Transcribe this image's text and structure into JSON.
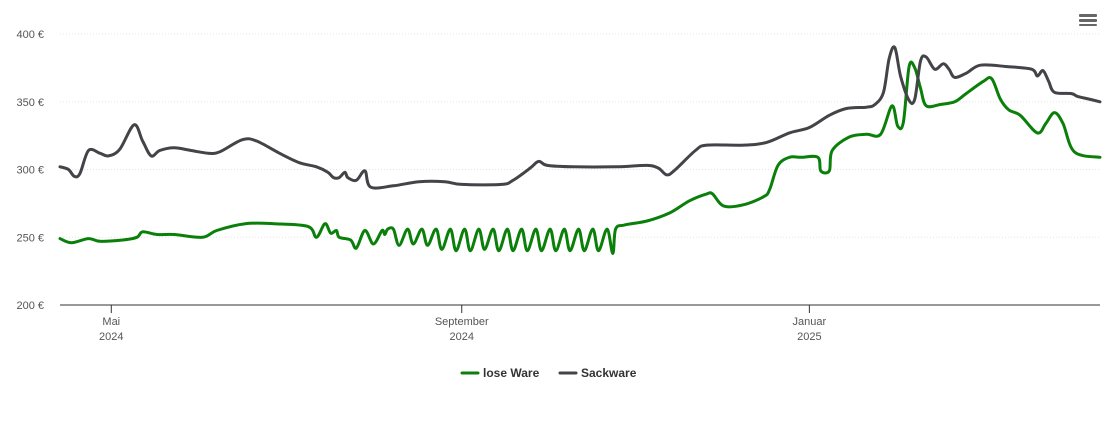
{
  "chart_menu": {
    "icon": "hamburger-menu-icon"
  },
  "chart_data": {
    "type": "line",
    "title": "",
    "xlabel": "",
    "ylabel": "",
    "ylim": [
      200,
      400
    ],
    "y_ticks": [
      200,
      250,
      300,
      350,
      400
    ],
    "y_unit": "€",
    "y_tick_labels": [
      "200 €",
      "250 €",
      "300 €",
      "350 €",
      "400 €"
    ],
    "x_range": [
      "2024-04-13",
      "2025-04-13"
    ],
    "x_ticks": [
      {
        "date": "2024-05-01",
        "month": "Mai",
        "year": "2024"
      },
      {
        "date": "2024-09-01",
        "month": "September",
        "year": "2024"
      },
      {
        "date": "2025-01-01",
        "month": "Januar",
        "year": "2025"
      }
    ],
    "grid": true,
    "legend_position": "bottom-center",
    "series": [
      {
        "name": "lose Ware",
        "color": "#0a7f0a",
        "points": [
          [
            "2024-04-13",
            249
          ],
          [
            "2024-04-17",
            246
          ],
          [
            "2024-04-23",
            249
          ],
          [
            "2024-04-27",
            247
          ],
          [
            "2024-05-05",
            248
          ],
          [
            "2024-05-10",
            250
          ],
          [
            "2024-05-12",
            254
          ],
          [
            "2024-05-17",
            252
          ],
          [
            "2024-05-23",
            252
          ],
          [
            "2024-06-02",
            250
          ],
          [
            "2024-06-07",
            255
          ],
          [
            "2024-06-17",
            260
          ],
          [
            "2024-06-27",
            260
          ],
          [
            "2024-07-09",
            258
          ],
          [
            "2024-07-12",
            250
          ],
          [
            "2024-07-15",
            260
          ],
          [
            "2024-07-17",
            253
          ],
          [
            "2024-07-19",
            255
          ],
          [
            "2024-07-20",
            250
          ],
          [
            "2024-07-24",
            248
          ],
          [
            "2024-07-26",
            242
          ],
          [
            "2024-07-29",
            255
          ],
          [
            "2024-08-01",
            245
          ],
          [
            "2024-08-04",
            255
          ],
          [
            "2024-08-05",
            252
          ],
          [
            "2024-08-06",
            256
          ],
          [
            "2024-08-08",
            256
          ],
          [
            "2024-08-10",
            244
          ],
          [
            "2024-08-13",
            256
          ],
          [
            "2024-08-15",
            245
          ],
          [
            "2024-08-18",
            256
          ],
          [
            "2024-08-20",
            244
          ],
          [
            "2024-08-23",
            256
          ],
          [
            "2024-08-25",
            241
          ],
          [
            "2024-08-28",
            256
          ],
          [
            "2024-08-30",
            240
          ],
          [
            "2024-09-02",
            256
          ],
          [
            "2024-09-04",
            240
          ],
          [
            "2024-09-07",
            256
          ],
          [
            "2024-09-09",
            241
          ],
          [
            "2024-09-12",
            256
          ],
          [
            "2024-09-14",
            240
          ],
          [
            "2024-09-17",
            256
          ],
          [
            "2024-09-19",
            240
          ],
          [
            "2024-09-22",
            256
          ],
          [
            "2024-09-24",
            240
          ],
          [
            "2024-09-27",
            256
          ],
          [
            "2024-09-29",
            240
          ],
          [
            "2024-10-02",
            256
          ],
          [
            "2024-10-04",
            240
          ],
          [
            "2024-10-07",
            256
          ],
          [
            "2024-10-09",
            240
          ],
          [
            "2024-10-12",
            256
          ],
          [
            "2024-10-14",
            240
          ],
          [
            "2024-10-17",
            256
          ],
          [
            "2024-10-19",
            240
          ],
          [
            "2024-10-22",
            256
          ],
          [
            "2024-10-24",
            238
          ],
          [
            "2024-10-25",
            256
          ],
          [
            "2024-10-28",
            259
          ],
          [
            "2024-11-05",
            262
          ],
          [
            "2024-11-13",
            268
          ],
          [
            "2024-11-20",
            277
          ],
          [
            "2024-11-26",
            282
          ],
          [
            "2024-11-28",
            282
          ],
          [
            "2024-12-02",
            273
          ],
          [
            "2024-12-09",
            274
          ],
          [
            "2024-12-16",
            280
          ],
          [
            "2024-12-18",
            285
          ],
          [
            "2024-12-21",
            303
          ],
          [
            "2024-12-25",
            309
          ],
          [
            "2024-12-29",
            309
          ],
          [
            "2025-01-04",
            309
          ],
          [
            "2025-01-05",
            299
          ],
          [
            "2025-01-08",
            299
          ],
          [
            "2025-01-09",
            314
          ],
          [
            "2025-01-15",
            324
          ],
          [
            "2025-01-21",
            326
          ],
          [
            "2025-01-26",
            326
          ],
          [
            "2025-01-30",
            347
          ],
          [
            "2025-02-01",
            332
          ],
          [
            "2025-02-03",
            335
          ],
          [
            "2025-02-05",
            376
          ],
          [
            "2025-02-07",
            375
          ],
          [
            "2025-02-09",
            360
          ],
          [
            "2025-02-11",
            347
          ],
          [
            "2025-02-16",
            348
          ],
          [
            "2025-02-21",
            350
          ],
          [
            "2025-02-25",
            356
          ],
          [
            "2025-03-03",
            365
          ],
          [
            "2025-03-06",
            367
          ],
          [
            "2025-03-09",
            352
          ],
          [
            "2025-03-12",
            344
          ],
          [
            "2025-03-16",
            340
          ],
          [
            "2025-03-22",
            327
          ],
          [
            "2025-03-25",
            334
          ],
          [
            "2025-03-28",
            342
          ],
          [
            "2025-03-31",
            334
          ],
          [
            "2025-04-04",
            313
          ],
          [
            "2025-04-13",
            309
          ]
        ]
      },
      {
        "name": "Sackware",
        "color": "#434348",
        "points": [
          [
            "2024-04-13",
            302
          ],
          [
            "2024-04-16",
            300
          ],
          [
            "2024-04-18",
            295
          ],
          [
            "2024-04-20",
            297
          ],
          [
            "2024-04-23",
            314
          ],
          [
            "2024-04-27",
            312
          ],
          [
            "2024-04-30",
            310
          ],
          [
            "2024-05-04",
            315
          ],
          [
            "2024-05-09",
            333
          ],
          [
            "2024-05-12",
            321
          ],
          [
            "2024-05-15",
            310
          ],
          [
            "2024-05-18",
            314
          ],
          [
            "2024-05-23",
            316
          ],
          [
            "2024-05-29",
            314
          ],
          [
            "2024-06-04",
            312
          ],
          [
            "2024-06-08",
            313
          ],
          [
            "2024-06-16",
            322
          ],
          [
            "2024-06-21",
            321
          ],
          [
            "2024-06-29",
            312
          ],
          [
            "2024-07-06",
            305
          ],
          [
            "2024-07-12",
            302
          ],
          [
            "2024-07-16",
            298
          ],
          [
            "2024-07-18",
            294
          ],
          [
            "2024-07-20",
            294
          ],
          [
            "2024-07-22",
            298
          ],
          [
            "2024-07-23",
            294
          ],
          [
            "2024-07-26",
            292
          ],
          [
            "2024-07-29",
            299
          ],
          [
            "2024-07-31",
            287
          ],
          [
            "2024-08-08",
            288
          ],
          [
            "2024-08-17",
            291
          ],
          [
            "2024-08-26",
            291
          ],
          [
            "2024-09-01",
            289
          ],
          [
            "2024-09-15",
            289
          ],
          [
            "2024-09-19",
            292
          ],
          [
            "2024-09-25",
            301
          ],
          [
            "2024-09-28",
            306
          ],
          [
            "2024-10-01",
            303
          ],
          [
            "2024-10-10",
            302
          ],
          [
            "2024-10-25",
            302
          ],
          [
            "2024-11-05",
            303
          ],
          [
            "2024-11-09",
            301
          ],
          [
            "2024-11-12",
            296
          ],
          [
            "2024-11-15",
            300
          ],
          [
            "2024-11-22",
            314
          ],
          [
            "2024-11-26",
            318
          ],
          [
            "2024-12-09",
            318
          ],
          [
            "2024-12-17",
            320
          ],
          [
            "2024-12-25",
            327
          ],
          [
            "2025-01-01",
            331
          ],
          [
            "2025-01-08",
            340
          ],
          [
            "2025-01-14",
            345
          ],
          [
            "2025-01-21",
            346
          ],
          [
            "2025-01-24",
            348
          ],
          [
            "2025-01-27",
            357
          ],
          [
            "2025-01-29",
            382
          ],
          [
            "2025-01-31",
            390
          ],
          [
            "2025-02-02",
            369
          ],
          [
            "2025-02-05",
            351
          ],
          [
            "2025-02-07",
            352
          ],
          [
            "2025-02-09",
            380
          ],
          [
            "2025-02-11",
            383
          ],
          [
            "2025-02-14",
            374
          ],
          [
            "2025-02-17",
            378
          ],
          [
            "2025-02-19",
            374
          ],
          [
            "2025-02-21",
            368
          ],
          [
            "2025-02-25",
            371
          ],
          [
            "2025-03-02",
            377
          ],
          [
            "2025-03-11",
            376
          ],
          [
            "2025-03-20",
            374
          ],
          [
            "2025-03-22",
            369
          ],
          [
            "2025-03-24",
            373
          ],
          [
            "2025-03-26",
            365
          ],
          [
            "2025-03-28",
            357
          ],
          [
            "2025-04-03",
            356
          ],
          [
            "2025-04-05",
            354
          ],
          [
            "2025-04-09",
            352
          ],
          [
            "2025-04-13",
            350
          ]
        ]
      }
    ]
  }
}
